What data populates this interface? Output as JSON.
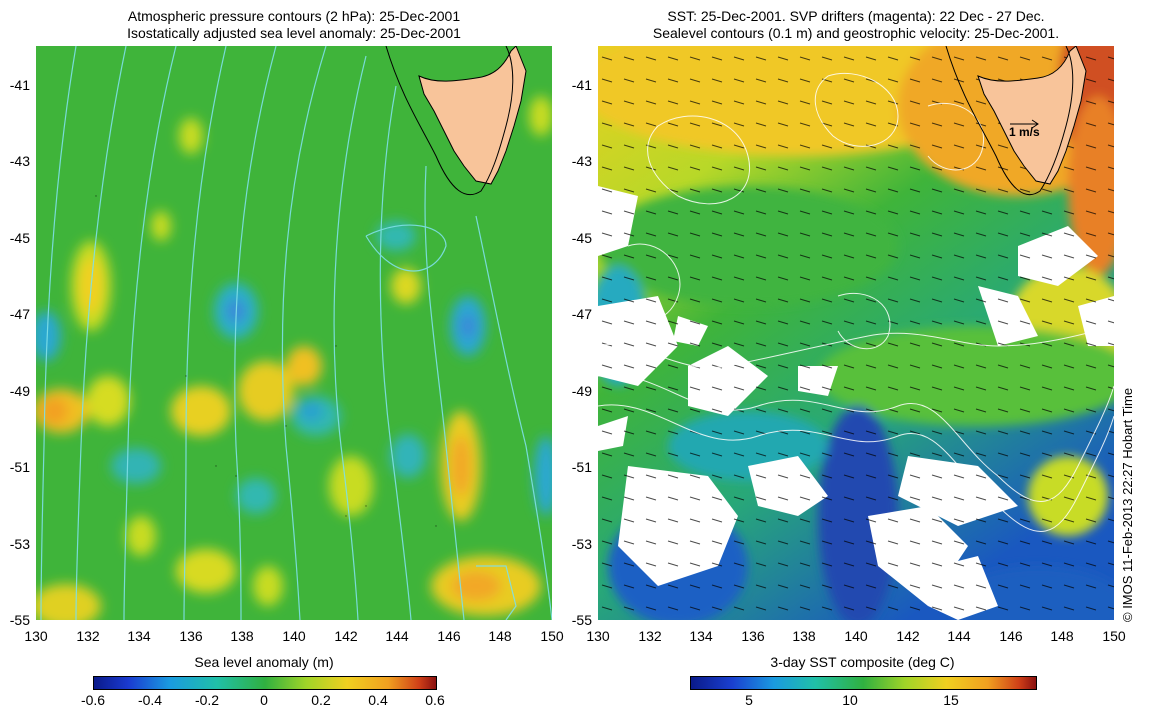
{
  "left_panel": {
    "title_line1": "Atmospheric pressure contours (2 hPa): 25-Dec-2001",
    "title_line2": "Isostatically adjusted sea level anomaly: 25-Dec-2001",
    "colorbar_label": "Sea level anomaly (m)",
    "colorbar_ticks": [
      "-0.6",
      "-0.4",
      "-0.2",
      "0",
      "0.2",
      "0.4",
      "0.6"
    ],
    "colorbar_range": [
      -0.6,
      0.6
    ]
  },
  "right_panel": {
    "title_line1": "SST: 25-Dec-2001. SVP drifters (magenta): 22 Dec - 27 Dec.",
    "title_line2": "Sealevel contours (0.1 m) and geostrophic velocity: 25-Dec-2001.",
    "colorbar_label": "3-day SST composite (deg C)",
    "colorbar_ticks": [
      "5",
      "10",
      "15"
    ],
    "velocity_scale_label": "1 m/s"
  },
  "axes": {
    "lat_ticks": [
      "-41",
      "-43",
      "-45",
      "-47",
      "-49",
      "-51",
      "-53",
      "-55"
    ],
    "lon_ticks": [
      "130",
      "132",
      "134",
      "136",
      "138",
      "140",
      "142",
      "144",
      "146",
      "148",
      "150"
    ]
  },
  "colors": {
    "land": "#f8c49a",
    "sla_bg": "#3fb43a",
    "sst_bg": "#52c24a",
    "pressure_contour": "#7fe0e8"
  },
  "credit": "© IMOS 11-Feb-2013 22:27 Hobart Time"
}
